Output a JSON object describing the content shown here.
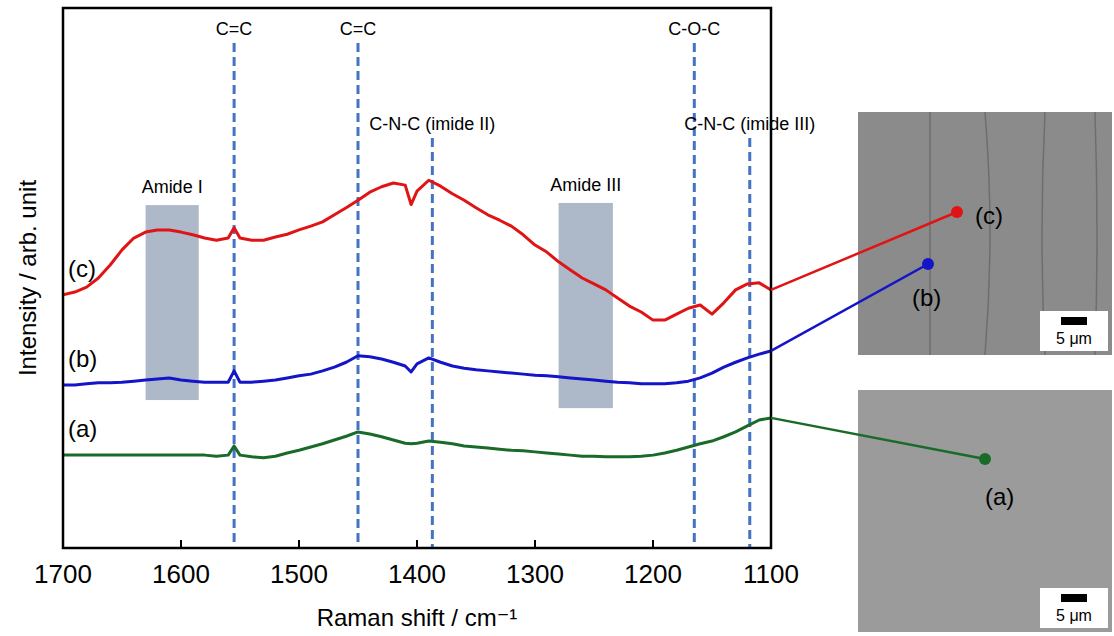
{
  "chart_data": {
    "type": "line",
    "x_label": "Raman shift / cm⁻¹",
    "y_label": "Intensity / arb. unit",
    "xlim": [
      1700,
      1100
    ],
    "xticks": [
      1700,
      1600,
      1500,
      1400,
      1300,
      1200,
      1100
    ],
    "ylim": [
      0,
      100
    ],
    "tick_labels": "x",
    "x": [
      1700,
      1690,
      1680,
      1670,
      1660,
      1650,
      1640,
      1630,
      1620,
      1610,
      1600,
      1590,
      1580,
      1570,
      1560,
      1555,
      1550,
      1540,
      1530,
      1520,
      1510,
      1500,
      1490,
      1480,
      1470,
      1460,
      1450,
      1440,
      1430,
      1420,
      1410,
      1405,
      1400,
      1390,
      1380,
      1370,
      1360,
      1350,
      1340,
      1330,
      1320,
      1310,
      1300,
      1290,
      1280,
      1270,
      1260,
      1250,
      1240,
      1230,
      1220,
      1210,
      1200,
      1190,
      1180,
      1170,
      1160,
      1150,
      1140,
      1130,
      1120,
      1110,
      1100
    ],
    "series": [
      {
        "name": "(a)",
        "color": "#1a6b2a",
        "values": [
          17.2,
          17.2,
          17.2,
          17.2,
          17.2,
          17.2,
          17.2,
          17.2,
          17.2,
          17.2,
          17.2,
          17.2,
          17.2,
          17.0,
          17.2,
          18.9,
          17.2,
          16.9,
          16.7,
          17.0,
          17.6,
          18.1,
          18.7,
          19.3,
          20.0,
          20.7,
          21.5,
          21.1,
          20.6,
          20.0,
          19.4,
          19.3,
          19.4,
          19.8,
          19.6,
          19.3,
          18.9,
          18.7,
          18.5,
          18.3,
          18.1,
          18.0,
          17.8,
          17.6,
          17.4,
          17.2,
          17.0,
          17.0,
          16.9,
          16.9,
          16.9,
          17.0,
          17.2,
          17.6,
          18.1,
          18.7,
          19.3,
          19.8,
          20.6,
          21.5,
          22.6,
          23.7,
          24.1
        ]
      },
      {
        "name": "(b)",
        "color": "#1414c8",
        "values": [
          30.2,
          30.2,
          30.4,
          30.6,
          30.6,
          30.7,
          30.9,
          31.1,
          31.3,
          31.5,
          31.1,
          30.9,
          30.7,
          30.7,
          30.7,
          32.8,
          30.7,
          30.7,
          30.9,
          31.1,
          31.5,
          31.9,
          32.2,
          32.8,
          33.5,
          34.4,
          35.6,
          35.4,
          35.0,
          34.4,
          33.7,
          32.6,
          34.1,
          35.2,
          34.4,
          33.7,
          33.3,
          33.0,
          32.8,
          32.6,
          32.4,
          32.2,
          32.0,
          31.9,
          31.7,
          31.5,
          31.3,
          31.1,
          30.9,
          30.7,
          30.6,
          30.4,
          30.4,
          30.4,
          30.6,
          30.9,
          31.5,
          32.4,
          33.5,
          34.4,
          35.2,
          35.9,
          36.5
        ]
      },
      {
        "name": "(c)",
        "color": "#e01414",
        "values": [
          46.9,
          47.4,
          48.3,
          50.0,
          52.4,
          55.2,
          57.4,
          58.5,
          58.9,
          58.9,
          58.5,
          58.0,
          57.4,
          57.0,
          57.4,
          59.3,
          57.4,
          57.0,
          57.0,
          57.6,
          58.1,
          58.9,
          59.6,
          60.4,
          61.7,
          63.0,
          64.4,
          65.9,
          66.9,
          67.6,
          67.2,
          63.6,
          66.1,
          68.1,
          67.0,
          65.6,
          64.4,
          63.0,
          61.7,
          60.7,
          59.6,
          58.0,
          56.1,
          54.8,
          53.0,
          51.5,
          50.0,
          48.9,
          47.8,
          46.3,
          44.8,
          43.7,
          42.2,
          42.2,
          43.3,
          44.4,
          45.0,
          43.3,
          45.4,
          47.8,
          48.9,
          49.1,
          47.8
        ]
      }
    ],
    "peak_lines": [
      {
        "x": 1555,
        "label": "C=C"
      },
      {
        "x": 1450,
        "label": "C=C"
      },
      {
        "x": 1387,
        "label": "C-N-C (imide II)"
      },
      {
        "x": 1165,
        "label": "C-O-C"
      },
      {
        "x": 1118,
        "label": "C-N-C (imide III)"
      }
    ],
    "bands": [
      {
        "label": "Amide I",
        "x": [
          1630,
          1585
        ],
        "y": [
          27.4,
          63.5
        ]
      },
      {
        "label": "Amide III",
        "x": [
          1280,
          1234
        ],
        "y": [
          25.9,
          63.9
        ]
      }
    ],
    "micrographs": [
      {
        "scale_bar": "5 μm"
      },
      {
        "scale_bar": "5 μm"
      }
    ]
  }
}
